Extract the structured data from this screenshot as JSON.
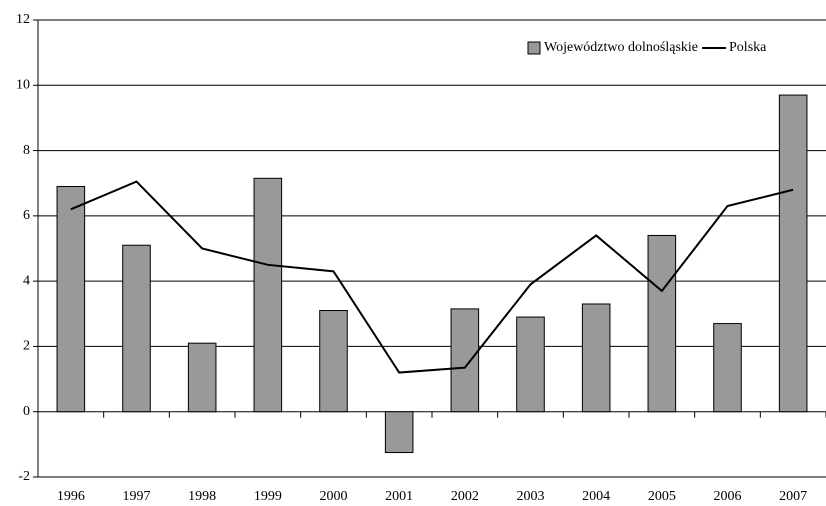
{
  "chart_data": {
    "type": "bar",
    "categories": [
      "1996",
      "1997",
      "1998",
      "1999",
      "2000",
      "2001",
      "2002",
      "2003",
      "2004",
      "2005",
      "2006",
      "2007"
    ],
    "series": [
      {
        "name": "Województwo dolnośląskie",
        "type": "bar",
        "color": "#999999",
        "values": [
          6.9,
          5.1,
          2.1,
          7.15,
          3.1,
          -1.25,
          3.15,
          2.9,
          3.3,
          5.4,
          2.7,
          9.7
        ]
      },
      {
        "name": "Polska",
        "type": "line",
        "color": "#000000",
        "values": [
          6.2,
          7.05,
          5.0,
          4.5,
          4.3,
          1.2,
          1.35,
          3.9,
          5.4,
          3.7,
          6.3,
          6.8
        ]
      }
    ],
    "ylim": [
      -2,
      12
    ],
    "yticks": [
      -2,
      0,
      2,
      4,
      6,
      8,
      10,
      12
    ],
    "grid": true,
    "legend": "upper right"
  }
}
